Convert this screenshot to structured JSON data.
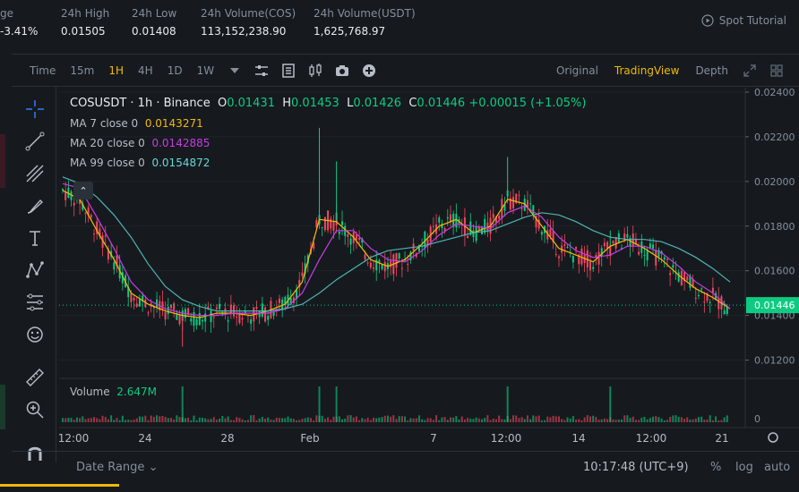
{
  "ticker": {
    "change": "-3.41%",
    "change_prefix": "ge",
    "high_label": "24h High",
    "high_value": "0.01505",
    "low_label": "24h Low",
    "low_value": "0.01408",
    "vol_cos_label": "24h Volume(COS)",
    "vol_cos_value": "113,152,238.90",
    "vol_usdt_label": "24h Volume(USDT)",
    "vol_usdt_value": "1,625,768.97",
    "tutorial": "Spot Tutorial"
  },
  "toolbar": {
    "time_label": "Time",
    "intervals": [
      "15m",
      "1H",
      "4H",
      "1D",
      "1W"
    ],
    "active_interval": "1H",
    "views": [
      "Original",
      "TradingView",
      "Depth"
    ],
    "active_view": "TradingView"
  },
  "legend": {
    "symbol": "COSUSDT · 1h · Binance",
    "o_label": "O",
    "o": "0.01431",
    "h_label": "H",
    "h": "0.01453",
    "l_label": "L",
    "l": "0.01426",
    "c_label": "C",
    "c": "0.01446",
    "chg": "+0.00015 (+1.05%)",
    "ma7_label": "MA 7 close 0",
    "ma7": "0.0143271",
    "ma20_label": "MA 20 close 0",
    "ma20": "0.0142885",
    "ma99_label": "MA 99 close 0",
    "ma99": "0.0154872"
  },
  "volume": {
    "label": "Volume",
    "value": "2.647M"
  },
  "chart_data": {
    "type": "line",
    "title": "COSUSDT · 1h · Binance",
    "y_ticks": [
      "0.02400",
      "0.02200",
      "0.02000",
      "0.01800",
      "0.01600",
      "0.01400",
      "0.01200"
    ],
    "ylim": [
      0.0113,
      0.0242
    ],
    "x_ticks": [
      "12:00",
      "24",
      "28",
      "Feb",
      "7",
      "12:00",
      "14",
      "12:00",
      "21"
    ],
    "last_price": "0.01446",
    "volume_axis_label": "0",
    "series": [
      {
        "name": "MA 7 close 0",
        "color": "#f0b90b",
        "values": [
          0.0196,
          0.0192,
          0.0178,
          0.0165,
          0.015,
          0.0145,
          0.0142,
          0.014,
          0.0139,
          0.0141,
          0.0141,
          0.014,
          0.0142,
          0.0145,
          0.0155,
          0.0183,
          0.0182,
          0.0175,
          0.0165,
          0.0162,
          0.0165,
          0.0172,
          0.018,
          0.0183,
          0.0177,
          0.018,
          0.0192,
          0.019,
          0.018,
          0.017,
          0.0167,
          0.0164,
          0.0171,
          0.0174,
          0.017,
          0.0165,
          0.0158,
          0.0152,
          0.0148,
          0.0143
        ]
      },
      {
        "name": "MA 20 close 0",
        "color": "#c83ce6",
        "values": [
          0.0199,
          0.0197,
          0.0184,
          0.017,
          0.0155,
          0.0147,
          0.0143,
          0.0141,
          0.014,
          0.014,
          0.0141,
          0.0141,
          0.0141,
          0.0143,
          0.015,
          0.0165,
          0.0178,
          0.0178,
          0.017,
          0.0165,
          0.0164,
          0.0169,
          0.0176,
          0.0181,
          0.018,
          0.0179,
          0.0186,
          0.0189,
          0.0184,
          0.0175,
          0.0169,
          0.0166,
          0.0167,
          0.0171,
          0.0171,
          0.0168,
          0.0162,
          0.0155,
          0.015,
          0.0143
        ]
      },
      {
        "name": "MA 99 close 0",
        "color": "#4fb4b4",
        "values": [
          0.0202,
          0.0199,
          0.0193,
          0.0185,
          0.0175,
          0.0163,
          0.0153,
          0.0147,
          0.0144,
          0.0142,
          0.0142,
          0.0142,
          0.0142,
          0.0143,
          0.0145,
          0.015,
          0.0156,
          0.0161,
          0.0166,
          0.0169,
          0.017,
          0.0171,
          0.0173,
          0.0175,
          0.0177,
          0.0178,
          0.0181,
          0.0184,
          0.0186,
          0.0185,
          0.0182,
          0.0178,
          0.0175,
          0.0174,
          0.0174,
          0.0173,
          0.017,
          0.0166,
          0.0161,
          0.0155
        ]
      }
    ],
    "grid": true
  },
  "bottom": {
    "date_range": "Date Range",
    "clock": "10:17:48 (UTC+9)",
    "pct": "%",
    "log": "log",
    "auto": "auto"
  },
  "colors": {
    "up": "#0ecb81",
    "down": "#f6465d",
    "accent": "#f0b90b"
  }
}
